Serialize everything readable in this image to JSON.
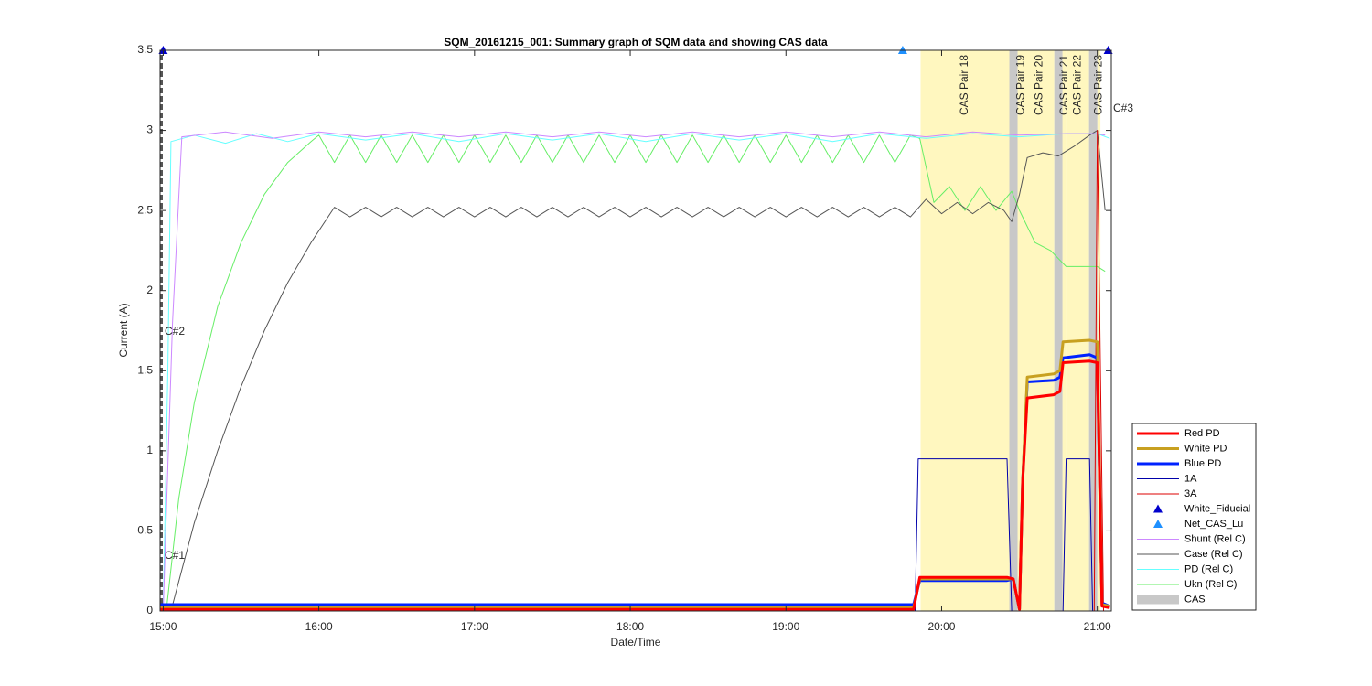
{
  "chart_data": {
    "type": "line",
    "title": "SQM_20161215_001: Summary graph of SQM data and showing CAS data",
    "x_label": "Date/Time",
    "y_label": "Current (A)",
    "xlim": [
      14.98,
      21.09
    ],
    "ylim": [
      0,
      3.5
    ],
    "xticks": [
      {
        "value": 15,
        "label": "15:00"
      },
      {
        "value": 16,
        "label": "16:00"
      },
      {
        "value": 17,
        "label": "17:00"
      },
      {
        "value": 18,
        "label": "18:00"
      },
      {
        "value": 19,
        "label": "19:00"
      },
      {
        "value": 20,
        "label": "20:00"
      },
      {
        "value": 21,
        "label": "21:00"
      }
    ],
    "yticks": [
      0,
      0.5,
      1,
      1.5,
      2,
      2.5,
      3,
      3.5
    ],
    "legend": "lower right",
    "pair_color": "#fff7bf",
    "pairs": [
      {
        "label": "CAS Pair 18",
        "span": [
          19.865,
          20.435
        ]
      },
      {
        "label": "CAS Pair 19",
        "span": [
          20.488,
          20.53
        ]
      },
      {
        "label": "CAS Pair 20",
        "span": [
          20.53,
          20.724
        ]
      },
      {
        "label": "CAS Pair 21",
        "span": [
          20.776,
          20.8
        ]
      },
      {
        "label": "CAS Pair 22",
        "span": [
          20.8,
          20.947
        ]
      },
      {
        "label": "CAS Pair 23",
        "span": [
          21.0,
          21.02
        ]
      }
    ],
    "cas": {
      "name": "CAS",
      "color": "#c8c8c8",
      "spans": [
        [
          20.435,
          20.488
        ],
        [
          20.724,
          20.776
        ],
        [
          20.947,
          21.0
        ]
      ]
    },
    "annotations": [
      "C#1",
      "C#2",
      "C#3"
    ],
    "series": [
      {
        "name": "Red PD",
        "kind": "line",
        "color": "#ff0000",
        "linewidth": 3,
        "x": [
          14.98,
          19.82,
          19.86,
          20.42,
          20.46,
          20.5,
          20.52,
          20.55,
          20.72,
          20.76,
          20.78,
          20.95,
          21.0,
          21.03,
          21.08
        ],
        "values": [
          0.01,
          0.01,
          0.21,
          0.21,
          0.2,
          0.01,
          0.8,
          1.33,
          1.35,
          1.37,
          1.55,
          1.56,
          1.55,
          0.03,
          0.02
        ]
      },
      {
        "name": "White PD",
        "kind": "line",
        "color": "#c8a020",
        "linewidth": 3,
        "x": [
          14.98,
          19.82,
          19.86,
          20.42,
          20.46,
          20.5,
          20.52,
          20.55,
          20.72,
          20.76,
          20.78,
          20.95,
          21.0,
          21.03,
          21.08
        ],
        "values": [
          0.02,
          0.02,
          0.2,
          0.2,
          0.2,
          0.01,
          0.8,
          1.46,
          1.48,
          1.5,
          1.68,
          1.69,
          1.68,
          0.04,
          0.03
        ]
      },
      {
        "name": "Blue PD",
        "kind": "line",
        "color": "#0022ff",
        "linewidth": 3,
        "x": [
          14.98,
          19.82,
          19.86,
          20.42,
          20.46,
          20.5,
          20.52,
          20.55,
          20.72,
          20.76,
          20.78,
          20.95,
          21.0,
          21.03,
          21.08
        ],
        "values": [
          0.04,
          0.04,
          0.19,
          0.19,
          0.2,
          0.01,
          0.8,
          1.43,
          1.44,
          1.46,
          1.58,
          1.6,
          1.58,
          0.05,
          0.03
        ]
      },
      {
        "name": "1A",
        "kind": "line",
        "color": "#0000aa",
        "linewidth": 1,
        "x": [
          14.98,
          19.83,
          19.85,
          20.42,
          20.45,
          20.78,
          20.8,
          20.95,
          20.97,
          21.08
        ],
        "values": [
          0,
          0,
          0.95,
          0.95,
          0,
          0,
          0.95,
          0.95,
          0,
          0
        ]
      },
      {
        "name": "3A",
        "kind": "line",
        "color": "#dd0000",
        "linewidth": 1,
        "x": [
          14.98,
          20.98,
          21.0,
          21.04,
          21.08
        ],
        "values": [
          0,
          0,
          3.0,
          0,
          0
        ]
      },
      {
        "name": "White_Fiducial",
        "kind": "scatter",
        "color": "#0000cc",
        "x": [
          15.0,
          21.07
        ],
        "values": [
          3.5,
          3.5
        ]
      },
      {
        "name": "Net_CAS_Lu",
        "kind": "scatter",
        "color": "#1e90ff",
        "x": [
          19.75
        ],
        "values": [
          3.5
        ]
      },
      {
        "name": "Shunt (Rel C)",
        "kind": "line",
        "color": "#cc88ff",
        "linewidth": 1,
        "x": [
          15.0,
          15.06,
          15.12,
          15.4,
          15.7,
          16.0,
          16.3,
          16.6,
          16.9,
          17.2,
          17.5,
          17.8,
          18.1,
          18.4,
          18.7,
          19.0,
          19.3,
          19.6,
          19.9,
          20.2,
          20.5,
          20.8,
          21.0,
          21.05
        ],
        "values": [
          0,
          1.8,
          2.96,
          2.99,
          2.95,
          2.99,
          2.96,
          2.99,
          2.96,
          2.99,
          2.96,
          2.99,
          2.96,
          2.99,
          2.96,
          2.99,
          2.96,
          2.99,
          2.96,
          2.99,
          2.97,
          2.98,
          2.98,
          2.97
        ]
      },
      {
        "name": "Case (Rel C)",
        "kind": "line",
        "color": "#555555",
        "linewidth": 1,
        "x": [
          15.05,
          15.2,
          15.35,
          15.5,
          15.65,
          15.8,
          15.95,
          16.1,
          16.2,
          16.3,
          16.4,
          16.5,
          16.6,
          16.7,
          16.8,
          16.9,
          17.0,
          17.1,
          17.2,
          17.3,
          17.4,
          17.5,
          17.6,
          17.7,
          17.8,
          17.9,
          18.0,
          18.1,
          18.2,
          18.3,
          18.4,
          18.5,
          18.6,
          18.7,
          18.8,
          18.9,
          19.0,
          19.1,
          19.2,
          19.3,
          19.4,
          19.5,
          19.6,
          19.7,
          19.8,
          19.9,
          20.0,
          20.1,
          20.2,
          20.3,
          20.4,
          20.45,
          20.5,
          20.55,
          20.65,
          20.75,
          20.85,
          20.95,
          21.0,
          21.05
        ],
        "values": [
          0,
          0.55,
          1.0,
          1.4,
          1.75,
          2.05,
          2.3,
          2.52,
          2.46,
          2.52,
          2.46,
          2.52,
          2.46,
          2.52,
          2.46,
          2.52,
          2.46,
          2.52,
          2.46,
          2.52,
          2.46,
          2.52,
          2.46,
          2.52,
          2.46,
          2.52,
          2.46,
          2.52,
          2.46,
          2.52,
          2.46,
          2.52,
          2.46,
          2.52,
          2.46,
          2.52,
          2.46,
          2.52,
          2.46,
          2.52,
          2.46,
          2.52,
          2.46,
          2.52,
          2.46,
          2.57,
          2.48,
          2.55,
          2.48,
          2.55,
          2.5,
          2.43,
          2.6,
          2.83,
          2.86,
          2.84,
          2.9,
          2.97,
          3.0,
          2.5
        ]
      },
      {
        "name": "PD (Rel C)",
        "kind": "line",
        "color": "#66ffff",
        "linewidth": 1,
        "x": [
          15.0,
          15.03,
          15.05,
          15.2,
          15.4,
          15.6,
          15.8,
          16.0,
          16.3,
          16.6,
          16.9,
          17.2,
          17.5,
          17.8,
          18.1,
          18.4,
          18.7,
          19.0,
          19.3,
          19.6,
          19.9,
          20.2,
          20.5,
          20.8,
          21.0,
          21.08
        ],
        "values": [
          0,
          1.5,
          2.93,
          2.97,
          2.92,
          2.98,
          2.93,
          2.98,
          2.94,
          2.98,
          2.93,
          2.98,
          2.94,
          2.98,
          2.93,
          2.98,
          2.94,
          2.98,
          2.93,
          2.98,
          2.95,
          2.98,
          2.96,
          2.98,
          2.98,
          2.95
        ]
      },
      {
        "name": "Ukn (Rel C)",
        "kind": "line",
        "color": "#66ee66",
        "linewidth": 1,
        "x": [
          15.02,
          15.1,
          15.2,
          15.35,
          15.5,
          15.65,
          15.8,
          15.95,
          16.0,
          16.1,
          16.2,
          16.3,
          16.4,
          16.5,
          16.6,
          16.7,
          16.8,
          16.9,
          17.0,
          17.1,
          17.2,
          17.3,
          17.4,
          17.5,
          17.6,
          17.7,
          17.8,
          17.9,
          18.0,
          18.1,
          18.2,
          18.3,
          18.4,
          18.5,
          18.6,
          18.7,
          18.8,
          18.9,
          19.0,
          19.1,
          19.2,
          19.3,
          19.4,
          19.5,
          19.6,
          19.7,
          19.8,
          19.86,
          19.95,
          20.05,
          20.15,
          20.25,
          20.35,
          20.45,
          20.5,
          20.6,
          20.7,
          20.8,
          20.9,
          21.0,
          21.05
        ],
        "values": [
          0,
          0.7,
          1.3,
          1.9,
          2.3,
          2.6,
          2.8,
          2.93,
          2.97,
          2.8,
          2.97,
          2.8,
          2.97,
          2.8,
          2.97,
          2.8,
          2.97,
          2.8,
          2.97,
          2.8,
          2.97,
          2.8,
          2.97,
          2.8,
          2.97,
          2.8,
          2.97,
          2.8,
          2.97,
          2.8,
          2.97,
          2.8,
          2.97,
          2.8,
          2.97,
          2.8,
          2.97,
          2.8,
          2.97,
          2.8,
          2.97,
          2.8,
          2.97,
          2.8,
          2.97,
          2.8,
          2.97,
          2.95,
          2.55,
          2.65,
          2.5,
          2.65,
          2.5,
          2.62,
          2.5,
          2.3,
          2.25,
          2.15,
          2.15,
          2.15,
          2.12
        ]
      }
    ]
  }
}
